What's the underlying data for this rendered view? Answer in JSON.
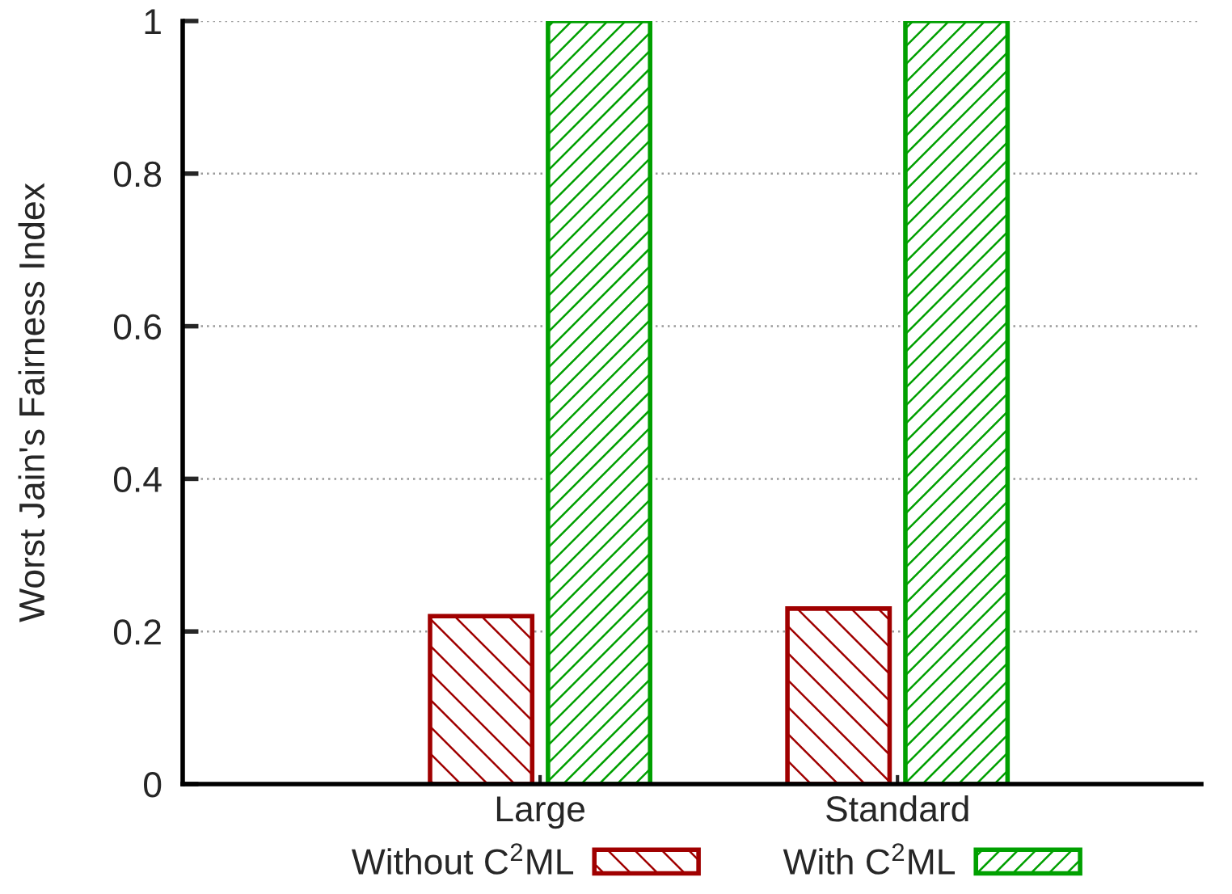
{
  "chart_data": {
    "type": "bar",
    "ylabel": "Worst Jain's Fairness Index",
    "categories": [
      "Large",
      "Standard"
    ],
    "series": [
      {
        "name": "Without C$^{2}$ML",
        "color": "#a00000",
        "values": [
          0.22,
          0.23
        ]
      },
      {
        "name": "With C$^{2}$ML",
        "color": "#00a000",
        "values": [
          1,
          1
        ]
      }
    ],
    "ylim": [
      0,
      1
    ],
    "yticks": [
      0,
      0.2,
      0.4,
      0.6,
      0.8,
      1
    ],
    "grid": "y",
    "legend": "bottom"
  }
}
